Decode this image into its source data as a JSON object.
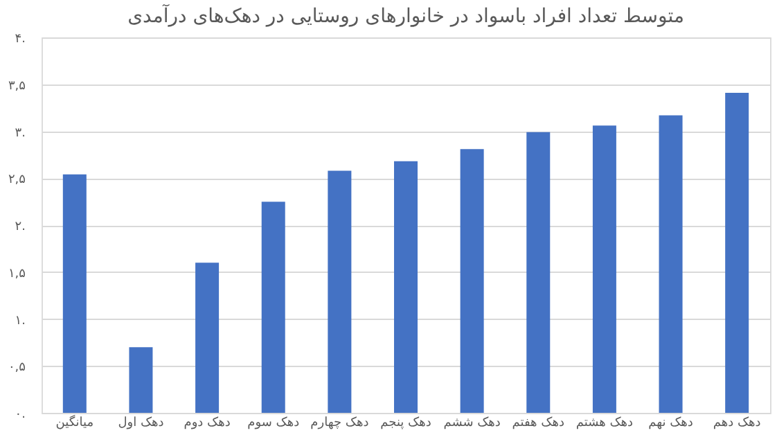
{
  "chart_data": {
    "type": "bar",
    "title": "متوسط تعداد افراد باسواد در خانوارهای روستایی در دهک‌های درآمدی",
    "categories": [
      "میانگین",
      "دهک اول",
      "دهک دوم",
      "دهک سوم",
      "دهک چهارم",
      "دهک پنجم",
      "دهک ششم",
      "دهک هفتم",
      "دهک هشتم",
      "دهک نهم",
      "دهک دهم"
    ],
    "values": [
      2.54,
      0.7,
      1.6,
      2.25,
      2.58,
      2.68,
      2.81,
      2.99,
      3.06,
      3.17,
      3.41
    ],
    "color": "#4472c4",
    "ylim": [
      0,
      4
    ],
    "yticks": [
      {
        "value": 0,
        "label": "۰."
      },
      {
        "value": 0.5,
        "label": "۰,۵"
      },
      {
        "value": 1,
        "label": "۱."
      },
      {
        "value": 1.5,
        "label": "۱,۵"
      },
      {
        "value": 2,
        "label": "۲."
      },
      {
        "value": 2.5,
        "label": "۲,۵"
      },
      {
        "value": 3,
        "label": "۳."
      },
      {
        "value": 3.5,
        "label": "۳,۵"
      },
      {
        "value": 4,
        "label": "۴."
      }
    ],
    "grid": "y"
  }
}
